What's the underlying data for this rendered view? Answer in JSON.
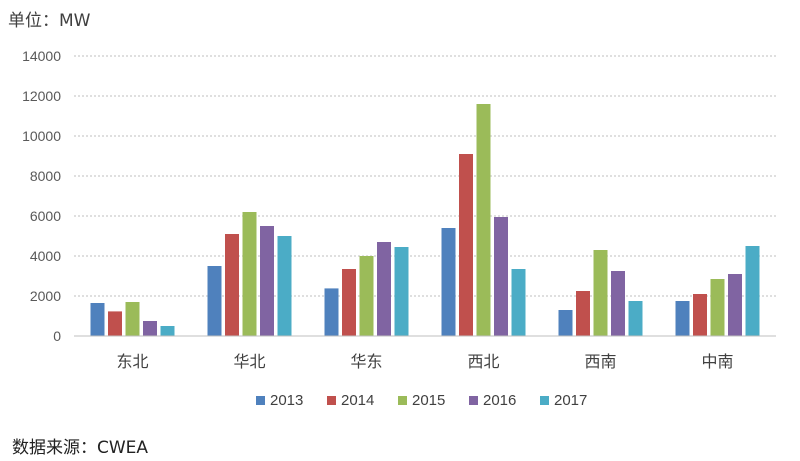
{
  "unit_label": "单位：MW",
  "source_label": "数据来源：CWEA",
  "chart_data": {
    "type": "bar",
    "categories": [
      "东北",
      "华北",
      "华东",
      "西北",
      "西南",
      "中南"
    ],
    "series": [
      {
        "name": "2013",
        "color": "#4F81BD",
        "values": [
          1650,
          3500,
          2380,
          5400,
          1300,
          1750
        ]
      },
      {
        "name": "2014",
        "color": "#C0504D",
        "values": [
          1230,
          5100,
          3350,
          9100,
          2250,
          2100
        ]
      },
      {
        "name": "2015",
        "color": "#9BBB59",
        "values": [
          1700,
          6200,
          4000,
          11600,
          4300,
          2850
        ]
      },
      {
        "name": "2016",
        "color": "#8064A2",
        "values": [
          750,
          5500,
          4700,
          5950,
          3250,
          3100
        ]
      },
      {
        "name": "2017",
        "color": "#4BACC6",
        "values": [
          500,
          5000,
          4450,
          3350,
          1750,
          4500
        ]
      }
    ],
    "ylim": [
      0,
      14000
    ],
    "yticks": [
      "0",
      "2000",
      "4000",
      "6000",
      "8000",
      "10000",
      "12000",
      "14000"
    ],
    "grid": true,
    "legend_position": "bottom"
  }
}
